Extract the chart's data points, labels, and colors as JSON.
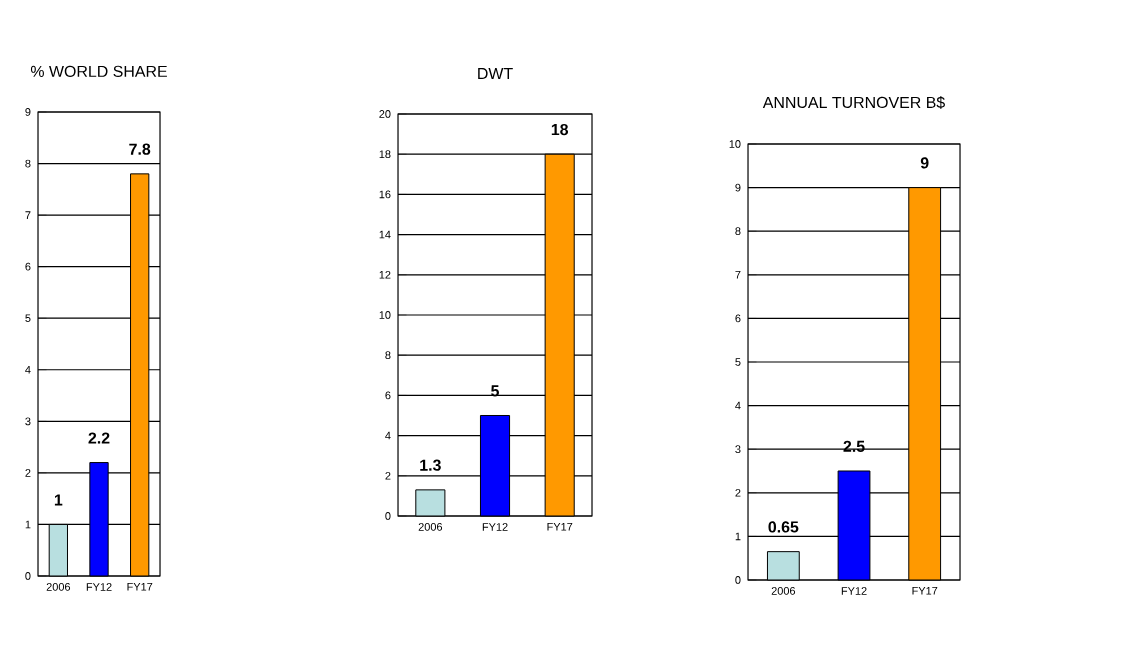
{
  "chart_data": [
    {
      "type": "bar",
      "title": "% WORLD SHARE",
      "categories": [
        "2006",
        "FY12",
        "FY17"
      ],
      "values": [
        1,
        2.2,
        7.8
      ],
      "colors": [
        "#b8dfe0",
        "#0000ff",
        "#ff9900"
      ],
      "ylim": [
        0,
        9
      ],
      "yticks": [
        0,
        1,
        2,
        3,
        4,
        5,
        6,
        7,
        8,
        9
      ],
      "grid": "y",
      "data_labels": true
    },
    {
      "type": "bar",
      "title": "DWT",
      "categories": [
        "2006",
        "FY12",
        "FY17"
      ],
      "values": [
        1.3,
        5,
        18
      ],
      "colors": [
        "#b8dfe0",
        "#0000ff",
        "#ff9900"
      ],
      "ylim": [
        0,
        20
      ],
      "yticks": [
        0,
        2,
        4,
        6,
        8,
        10,
        12,
        14,
        16,
        18,
        20
      ],
      "grid": "y",
      "data_labels": true
    },
    {
      "type": "bar",
      "title": "ANNUAL TURNOVER B$",
      "categories": [
        "2006",
        "FY12",
        "FY17"
      ],
      "values": [
        0.65,
        2.5,
        9
      ],
      "colors": [
        "#b8dfe0",
        "#0000ff",
        "#ff9900"
      ],
      "ylim": [
        0,
        10
      ],
      "yticks": [
        0,
        1,
        2,
        3,
        4,
        5,
        6,
        7,
        8,
        9,
        10
      ],
      "grid": "y",
      "data_labels": true
    }
  ]
}
